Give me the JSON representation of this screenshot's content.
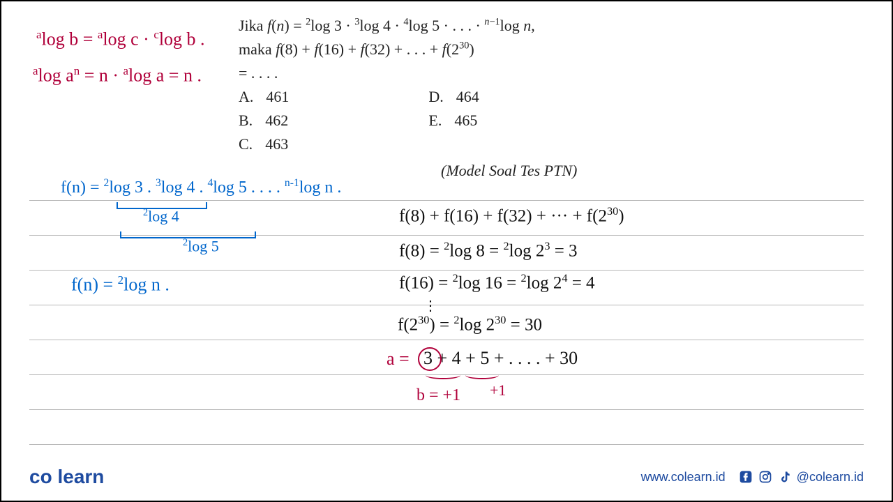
{
  "problem": {
    "line1_html": "Jika <i>f</i>(<i>n</i>) = <sup>2</sup>log 3 · <sup>3</sup>log 4 · <sup>4</sup>log 5 · . . . · <sup><i>n</i>−1</sup>log <i>n</i>,",
    "line2_html": "maka  <i>f</i>(8)  +  <i>f</i>(16)  +  <i>f</i>(32)  +  .  .  .  +  <i>f</i>(2<sup>30</sup>)",
    "line3": "=  .  .  .  .",
    "options": {
      "A": "461",
      "B": "462",
      "C": "463",
      "D": "464",
      "E": "465"
    },
    "model_note": "(Model  Soal  Tes  PTN)"
  },
  "annotations": {
    "red1_html": "<sup>a</sup>log b = <sup>a</sup>log c · <sup>c</sup>log b .",
    "red2_html": "<sup>a</sup>log a<sup>n</sup> = n · <sup>a</sup>log a  = n .",
    "blue_fn_html": "f(n) = <sup>2</sup>log 3 . <sup>3</sup>log 4 . <sup>4</sup>log 5 . . . .  <sup>n-1</sup>log n .",
    "blue_log4_html": "<sup>2</sup>log 4",
    "blue_log5_html": "<sup>2</sup>log 5",
    "blue_fn2_html": "f(n)  =  <sup>2</sup>log n .",
    "black_sum_html": "f(8) + f(16) + f(32) + ···  + f(2<sup>30</sup>)",
    "black_f8_html": "f(8) = <sup>2</sup>log 8  =  <sup>2</sup>log 2<sup>3</sup>  = 3",
    "black_f16_html": "f(16) = <sup>2</sup>log 16 =  <sup>2</sup>log 2<sup>4</sup> =  4",
    "black_dots": "⋮",
    "black_f230_html": "f(2<sup>30</sup>) = <sup>2</sup>log 2<sup>30</sup>  =  30",
    "red_a": "a =",
    "black_series": "3  +  4 + 5 + . . . . + 30",
    "red_b": "b = +1",
    "red_plus1": "+1"
  },
  "footer": {
    "brand_co": "co",
    "brand_learn": "learn",
    "url": "www.colearn.id",
    "handle": "@colearn.id"
  },
  "style": {
    "line_positions": [
      285,
      335,
      385,
      435,
      485,
      535,
      585,
      635
    ],
    "colors": {
      "red": "#b0003a",
      "blue": "#0066cc",
      "black": "#111",
      "brand": "#1e4ba0",
      "line": "#b8b8b8"
    }
  }
}
